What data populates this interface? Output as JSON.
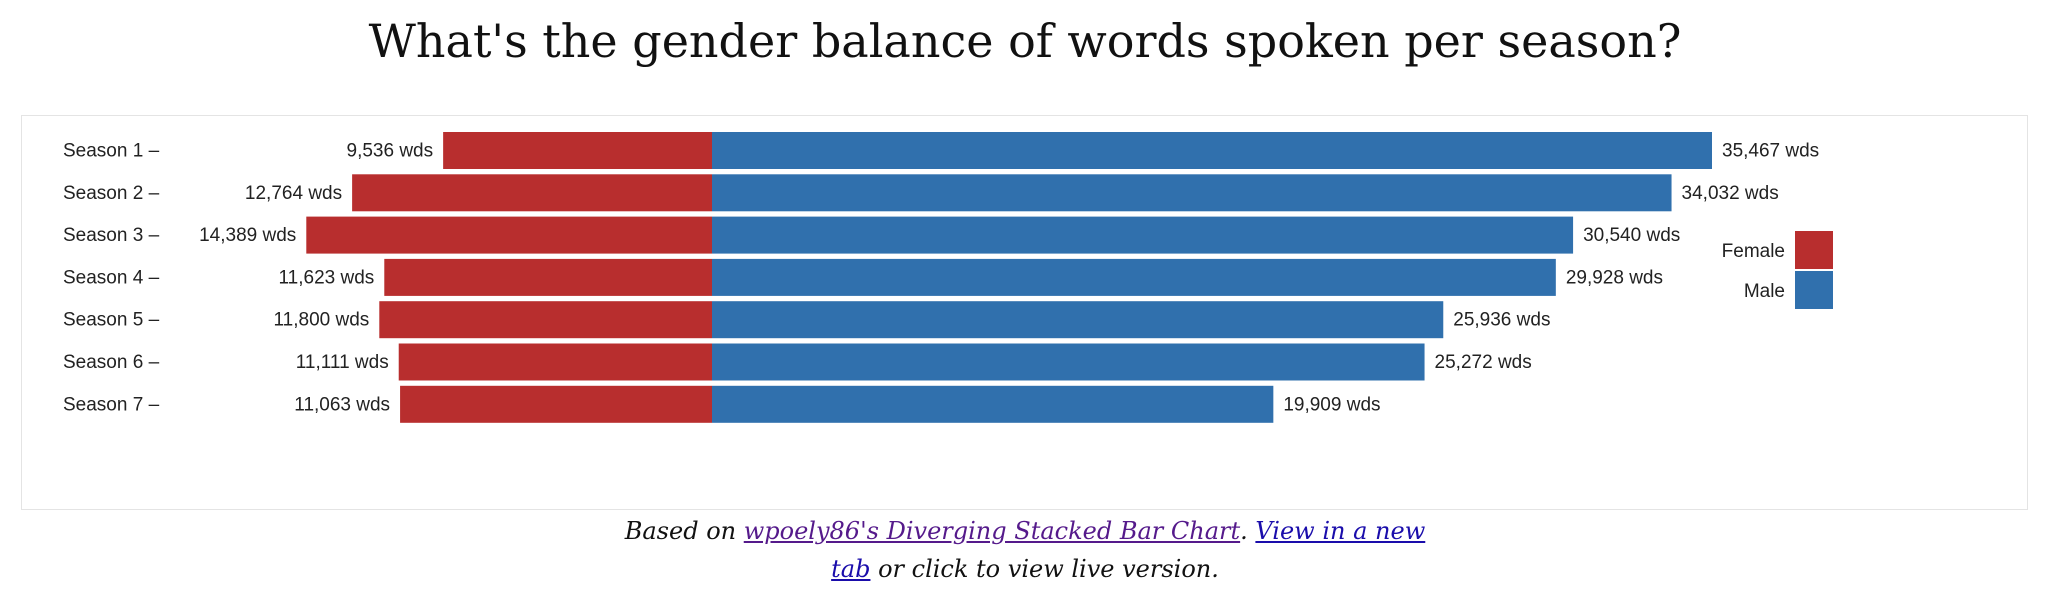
{
  "title": "What's the gender balance of words spoken per season?",
  "chart_data": {
    "type": "bar",
    "orientation": "horizontal-diverging",
    "title": "What's the gender balance of words spoken per season?",
    "categories": [
      "Season 1 –",
      "Season 2 –",
      "Season 3 –",
      "Season 4 –",
      "Season 5 –",
      "Season 6 –",
      "Season 7 –"
    ],
    "value_suffix": " wds",
    "series": [
      {
        "name": "Female",
        "color": "#b82e2e",
        "values": [
          9536,
          12764,
          14389,
          11623,
          11800,
          11111,
          11063
        ]
      },
      {
        "name": "Male",
        "color": "#3070ad",
        "values": [
          35467,
          34032,
          30540,
          29928,
          25936,
          25272,
          19909
        ]
      }
    ],
    "legend_position": "right",
    "grid": false
  },
  "caption": {
    "prefix": "Based on ",
    "link1": "wpoely86's Diverging Stacked Bar Chart",
    "middle": ". ",
    "link2a": "View in a new",
    "link2b": "tab",
    "suffix": " or click to view live version."
  }
}
